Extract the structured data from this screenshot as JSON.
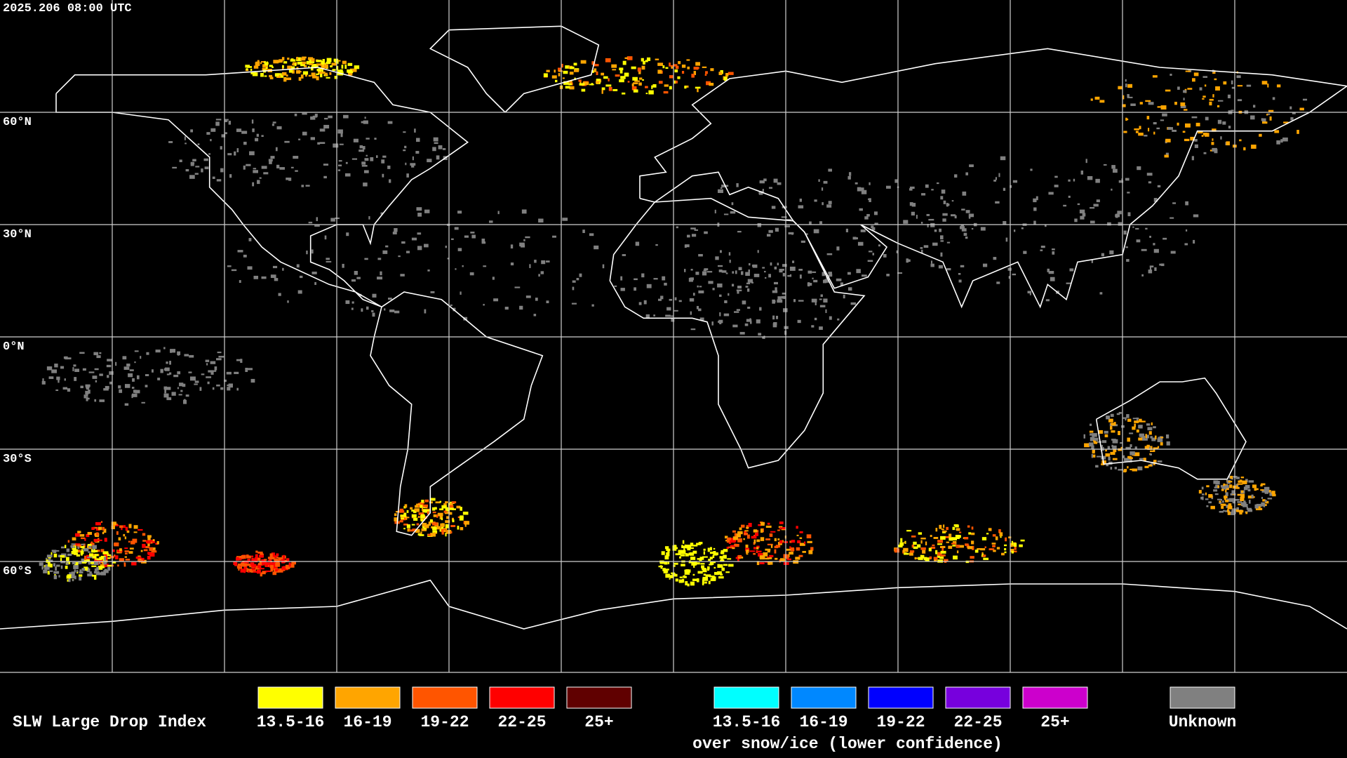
{
  "timestamp": "2025.206 08:00 UTC",
  "lat_labels": [
    "60°N",
    "30°N",
    "0°N",
    "30°S",
    "60°S"
  ],
  "legend": {
    "title": "SLW Large Drop Index",
    "items": [
      {
        "label": "13.5-16",
        "color": "#ffff00"
      },
      {
        "label": "16-19",
        "color": "#ffa500"
      },
      {
        "label": "19-22",
        "color": "#ff5500"
      },
      {
        "label": "22-25",
        "color": "#ff0000"
      },
      {
        "label": "25+",
        "color": "#600000"
      }
    ],
    "snow_items": [
      {
        "label": "13.5-16",
        "color": "#00ffff"
      },
      {
        "label": "16-19",
        "color": "#0088ff"
      },
      {
        "label": "19-22",
        "color": "#0000ff"
      },
      {
        "label": "22-25",
        "color": "#7700dd"
      },
      {
        "label": "25+",
        "color": "#cc00cc"
      }
    ],
    "snow_caption": "over snow/ice (lower confidence)",
    "unknown": {
      "label": "Unknown",
      "color": "#808080"
    }
  }
}
